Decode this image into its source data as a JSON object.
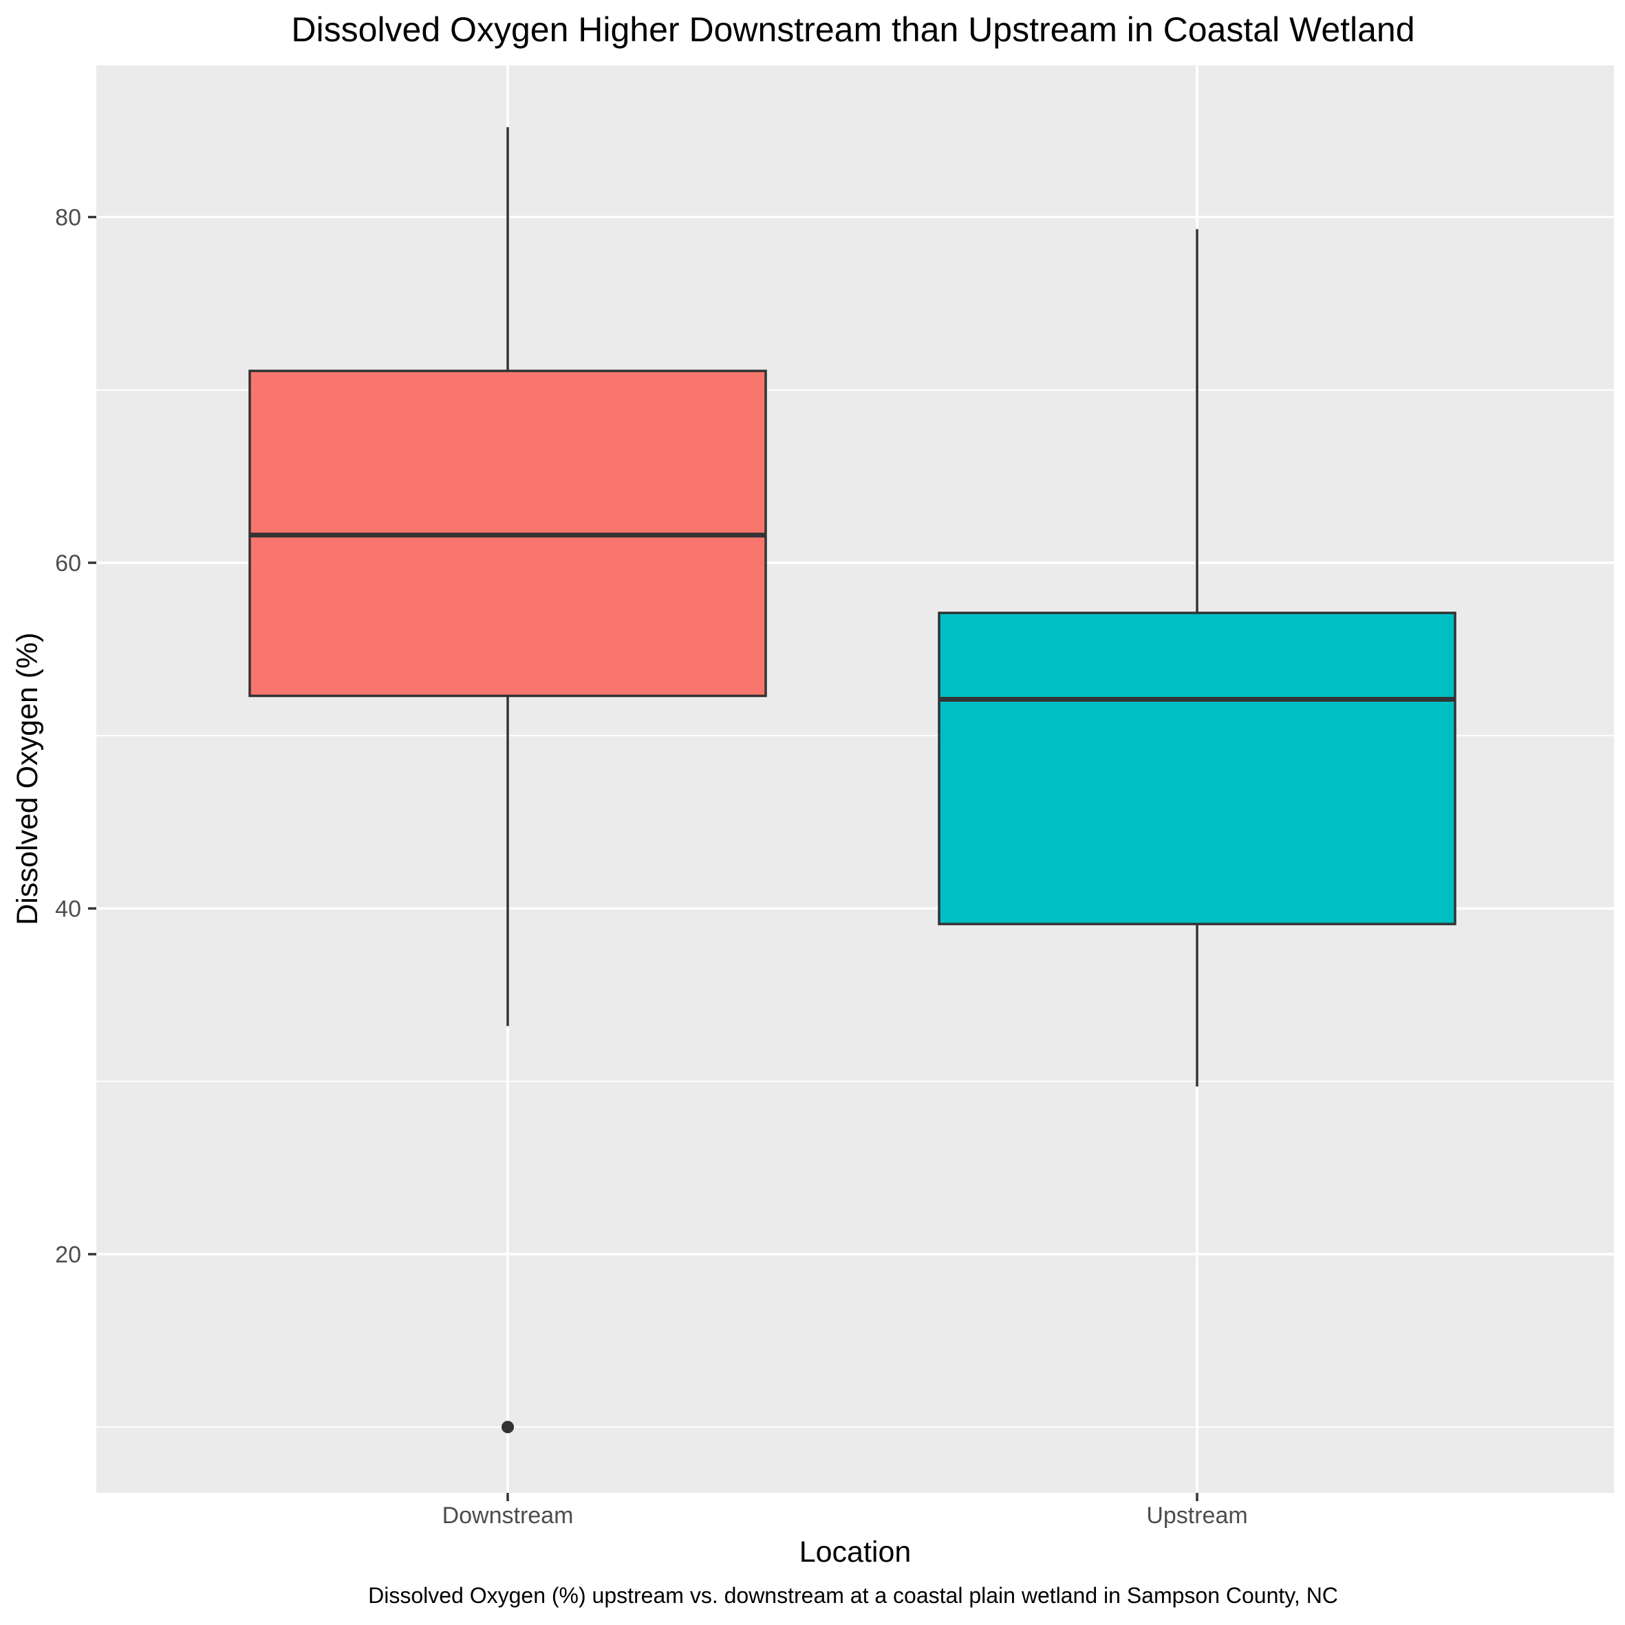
{
  "chart_data": {
    "type": "box",
    "title": "Dissolved Oxygen Higher Downstream than Upstream in Coastal Wetland",
    "xlabel": "Location",
    "ylabel": "Dissolved Oxygen (%)",
    "caption": "Dissolved Oxygen (%) upstream vs. downstream at a coastal plain wetland in Sampson County, NC",
    "categories": [
      "Downstream",
      "Upstream"
    ],
    "y_ticks": [
      20,
      40,
      60,
      80
    ],
    "ylim": [
      6.5,
      89
    ],
    "grid": true,
    "legend": "none",
    "boxes": [
      {
        "category": "Downstream",
        "whisker_low": 33.2,
        "q1": 52.3,
        "median": 61.6,
        "q3": 71.1,
        "whisker_high": 85.2,
        "outliers": [
          10
        ],
        "color": "#F8766D"
      },
      {
        "category": "Upstream",
        "whisker_low": 29.7,
        "q1": 39.1,
        "median": 52.1,
        "q3": 57.1,
        "whisker_high": 79.3,
        "outliers": [],
        "color": "#00BFC4"
      }
    ]
  },
  "colors": {
    "panel_background": "#EBEBEB",
    "grid": "#FFFFFF",
    "box_outline": "#333333"
  }
}
